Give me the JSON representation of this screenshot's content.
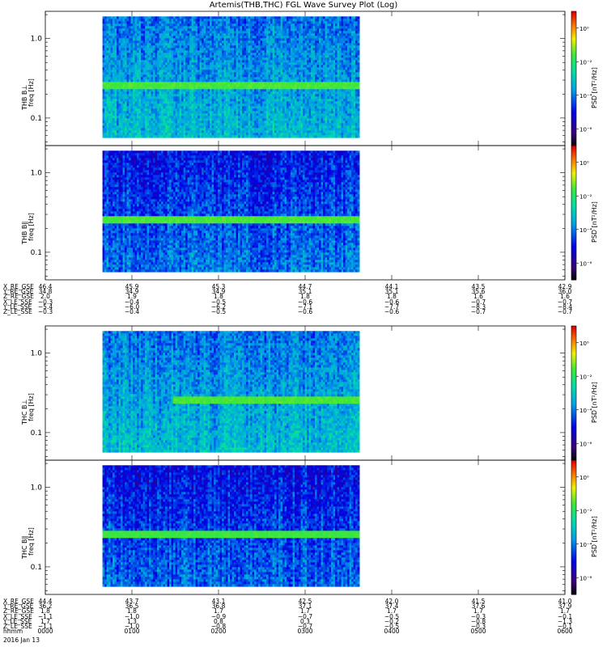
{
  "title": "Artemis(THB,THC) FGL Wave Survey Plot (Log)",
  "colorbar": {
    "label": "PSD [nT²/Hz]",
    "ticks": [
      {
        "exp": 0,
        "text": "10⁰"
      },
      {
        "exp": -2,
        "text": "10⁻²"
      },
      {
        "exp": -4,
        "text": "10⁻⁴"
      },
      {
        "exp": -6,
        "text": "10⁻⁶"
      }
    ],
    "range_log10": [
      -7,
      1
    ]
  },
  "yaxis": {
    "label_unit": "freq [Hz]",
    "ticks": [
      {
        "value": 1.0,
        "text": "1.0"
      },
      {
        "value": 0.1,
        "text": "0.1"
      }
    ],
    "range": [
      0.045,
      2.2
    ],
    "scale": "log"
  },
  "chart_data": [
    {
      "type": "heatmap",
      "panel": "THB B⊥",
      "ylabel": "THB B⊥",
      "x_range_hours": [
        0,
        6
      ],
      "data_coverage_hours": [
        0.66,
        3.61
      ],
      "y_range_hz": [
        0.06,
        1.9
      ],
      "band_hz": [
        0.24,
        0.28
      ],
      "band_log10_psd": -1.5,
      "background_log10_psd": -3.6,
      "band_hours": [
        0.66,
        3.61
      ]
    },
    {
      "type": "heatmap",
      "panel": "THB B∥",
      "ylabel": "THB B∥",
      "x_range_hours": [
        0,
        6
      ],
      "data_coverage_hours": [
        0.66,
        3.61
      ],
      "y_range_hz": [
        0.06,
        1.9
      ],
      "band_hz": [
        0.24,
        0.28
      ],
      "band_log10_psd": -1.5,
      "background_log10_psd": -4.4,
      "band_hours": [
        0.66,
        3.61
      ]
    },
    {
      "type": "heatmap",
      "panel": "THC B⊥",
      "ylabel": "THC B⊥",
      "x_range_hours": [
        0,
        6
      ],
      "data_coverage_hours": [
        0.66,
        3.61
      ],
      "y_range_hz": [
        0.06,
        1.9
      ],
      "band_hz": [
        0.24,
        0.28
      ],
      "band_log10_psd": -1.5,
      "background_log10_psd": -3.6,
      "band_hours": [
        1.47,
        3.61
      ]
    },
    {
      "type": "heatmap",
      "panel": "THC B∥",
      "ylabel": "THC B∥",
      "x_range_hours": [
        0,
        6
      ],
      "data_coverage_hours": [
        0.66,
        3.61
      ],
      "y_range_hz": [
        0.06,
        1.9
      ],
      "band_hz": [
        0.24,
        0.28
      ],
      "band_log10_psd": -1.6,
      "background_log10_psd": -4.5,
      "band_hours": [
        0.66,
        3.61
      ]
    }
  ],
  "ephem_thb": {
    "rows": [
      {
        "name": "X_RE_GSE",
        "values": [
          "46.4",
          "45.9",
          "45.3",
          "44.7",
          "44.1",
          "43.5",
          "42.9"
        ]
      },
      {
        "name": "Y_RE_GSE",
        "values": [
          "34.8",
          "34.9",
          "34.9",
          "35.1",
          "35.1",
          "35.6",
          "36.0"
        ]
      },
      {
        "name": "Z_RE_GSE",
        "values": [
          "2.0",
          "1.9",
          "1.8",
          "1.8",
          "1.8",
          "1.6",
          "1.6"
        ]
      },
      {
        "name": "X_LE_SSE",
        "values": [
          "−0.3",
          "−0.4",
          "−0.5",
          "−0.6",
          "−0.6",
          "−0.7",
          "−0.7"
        ]
      },
      {
        "name": "Y_LE_SSE",
        "values": [
          "−5.4",
          "−6.0",
          "−6.2",
          "−7.1",
          "−7.7",
          "−8.3",
          "−8.4"
        ]
      },
      {
        "name": "Z_LE_SSE",
        "values": [
          "−0.3",
          "−0.4",
          "−0.5",
          "−0.6",
          "−0.6",
          "−0.7",
          "−0.7"
        ]
      }
    ]
  },
  "ephem_thc": {
    "rows": [
      {
        "name": "X_RE_GSE",
        "values": [
          "44.4",
          "43.7",
          "43.1",
          "42.5",
          "42.0",
          "41.5",
          "41.0"
        ]
      },
      {
        "name": "Y_RE_GSE",
        "values": [
          "36.2",
          "36.5",
          "36.8",
          "37.1",
          "37.4",
          "37.6",
          "37.9"
        ]
      },
      {
        "name": "Z_RE_GSE",
        "values": [
          "1.8",
          "1.8",
          "1.7",
          "1.7",
          "1.7",
          "1.7",
          "1.7"
        ]
      },
      {
        "name": "X_LE_SSE",
        "values": [
          "−1.1",
          "−1.0",
          "−0.9",
          "−0.7",
          "−0.5",
          "−0.3",
          "−0.1"
        ]
      },
      {
        "name": "Y_LE_SSE",
        "values": [
          "1.7",
          "1.3",
          "0.8",
          "0.3",
          "−0.2",
          "−0.8",
          "−1.3"
        ]
      },
      {
        "name": "Z_LE_SSE",
        "values": [
          "−1.1",
          "−1.0",
          "−0.8",
          "−0.7",
          "−0.5",
          "−0.3",
          "−0.1"
        ]
      },
      {
        "name": "hhmm",
        "values": [
          "0000",
          "0100",
          "0200",
          "0300",
          "0400",
          "0500",
          "0600"
        ]
      }
    ]
  },
  "date": "2016 Jan 13"
}
